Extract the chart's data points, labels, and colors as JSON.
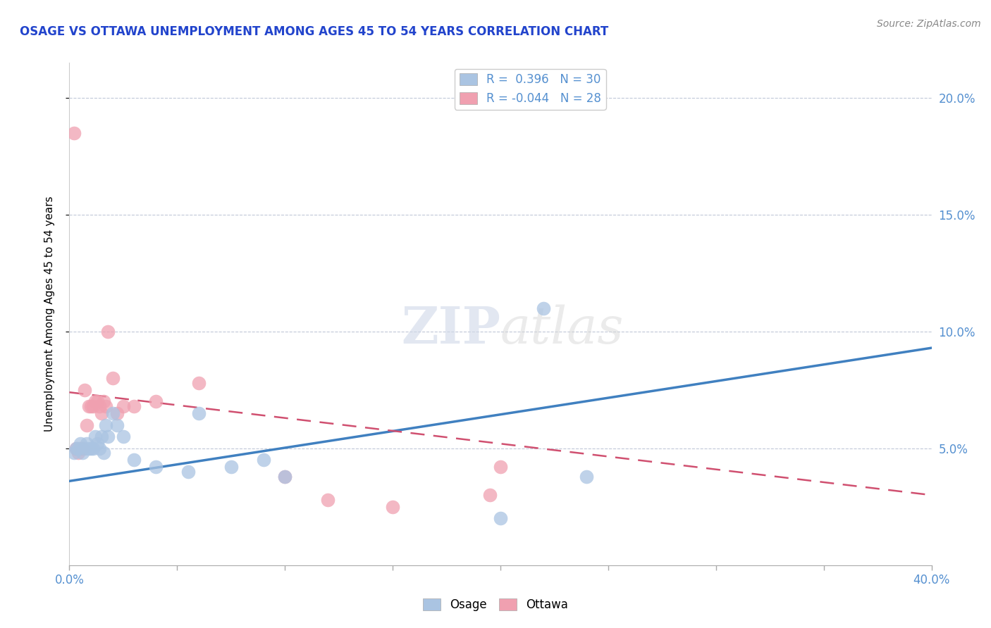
{
  "title": "OSAGE VS OTTAWA UNEMPLOYMENT AMONG AGES 45 TO 54 YEARS CORRELATION CHART",
  "source": "Source: ZipAtlas.com",
  "ylabel": "Unemployment Among Ages 45 to 54 years",
  "xlim": [
    0.0,
    0.4
  ],
  "ylim": [
    0.0,
    0.215
  ],
  "yticks": [
    0.05,
    0.1,
    0.15,
    0.2
  ],
  "osage_R": 0.396,
  "osage_N": 30,
  "ottawa_R": -0.044,
  "ottawa_N": 28,
  "osage_color": "#aac4e2",
  "osage_line_color": "#4080c0",
  "ottawa_color": "#f0a0b0",
  "ottawa_line_color": "#d05070",
  "axis_color": "#5590d0",
  "title_color": "#2244cc",
  "watermark_zip": "ZIP",
  "watermark_atlas": "atlas",
  "osage_line_y0": 0.036,
  "osage_line_y1": 0.093,
  "ottawa_line_y0": 0.074,
  "ottawa_line_y1": 0.03,
  "osage_x": [
    0.002,
    0.003,
    0.004,
    0.005,
    0.006,
    0.007,
    0.008,
    0.009,
    0.01,
    0.011,
    0.012,
    0.013,
    0.014,
    0.015,
    0.016,
    0.017,
    0.018,
    0.02,
    0.022,
    0.025,
    0.03,
    0.04,
    0.055,
    0.06,
    0.075,
    0.09,
    0.1,
    0.22,
    0.24,
    0.2
  ],
  "osage_y": [
    0.048,
    0.05,
    0.05,
    0.052,
    0.048,
    0.05,
    0.052,
    0.05,
    0.05,
    0.05,
    0.055,
    0.052,
    0.05,
    0.055,
    0.048,
    0.06,
    0.055,
    0.065,
    0.06,
    0.055,
    0.045,
    0.042,
    0.04,
    0.065,
    0.042,
    0.045,
    0.038,
    0.11,
    0.038,
    0.02
  ],
  "ottawa_x": [
    0.002,
    0.003,
    0.004,
    0.005,
    0.006,
    0.007,
    0.008,
    0.009,
    0.01,
    0.011,
    0.012,
    0.013,
    0.014,
    0.015,
    0.016,
    0.017,
    0.018,
    0.02,
    0.022,
    0.025,
    0.03,
    0.04,
    0.06,
    0.1,
    0.12,
    0.15,
    0.195,
    0.2
  ],
  "ottawa_y": [
    0.185,
    0.05,
    0.048,
    0.05,
    0.05,
    0.075,
    0.06,
    0.068,
    0.068,
    0.068,
    0.07,
    0.07,
    0.068,
    0.065,
    0.07,
    0.068,
    0.1,
    0.08,
    0.065,
    0.068,
    0.068,
    0.07,
    0.078,
    0.038,
    0.028,
    0.025,
    0.03,
    0.042
  ]
}
